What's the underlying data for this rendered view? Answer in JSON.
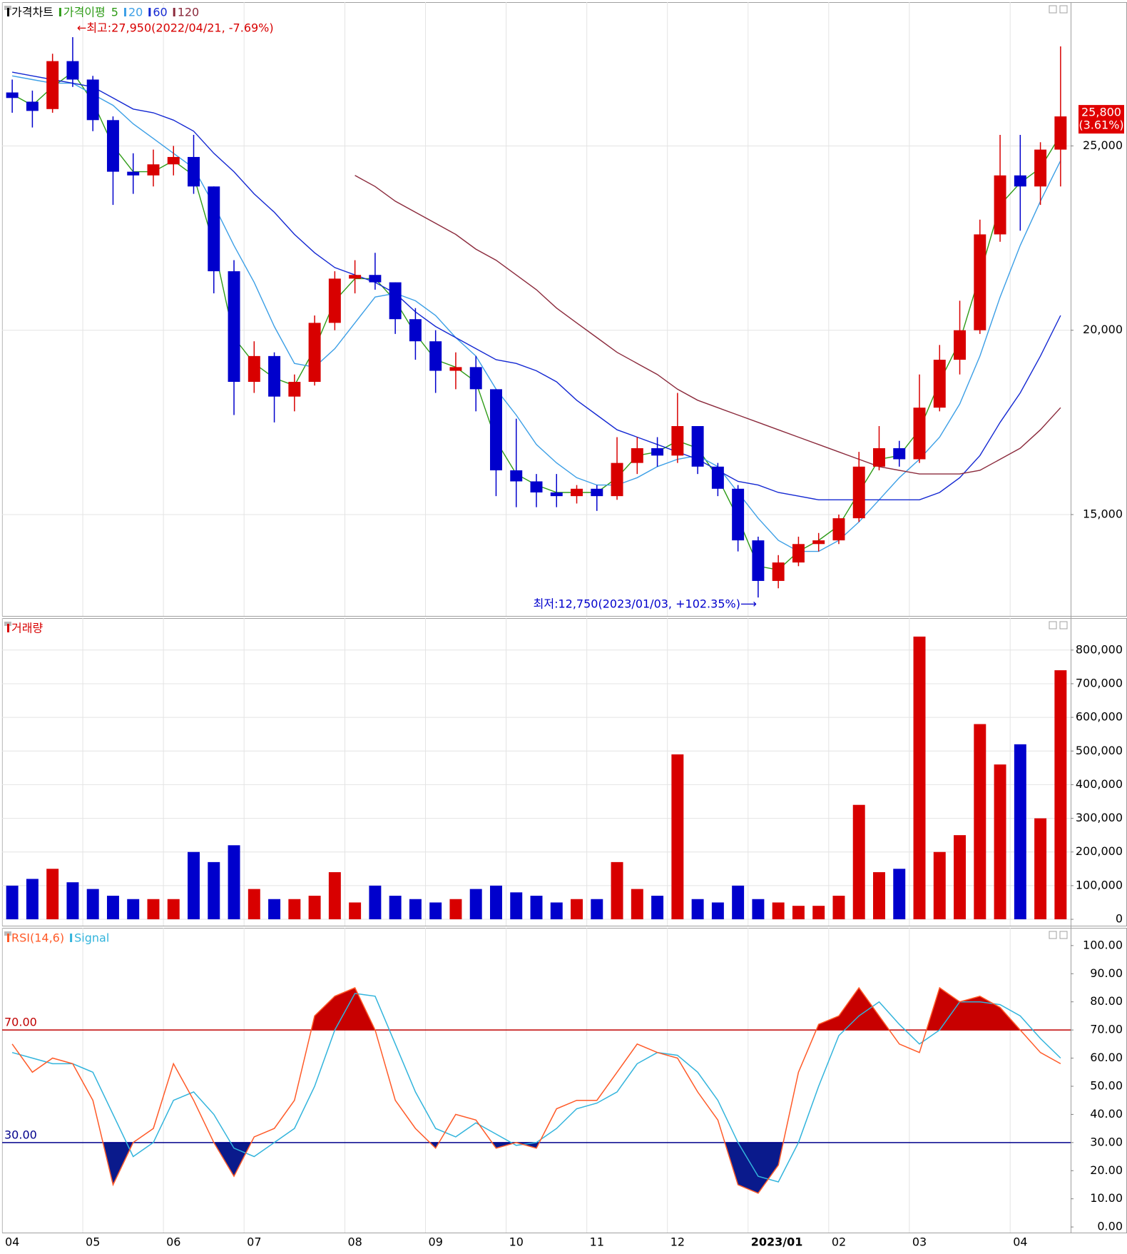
{
  "chart_data": [
    {
      "type": "candlestick",
      "title": "가격차트",
      "ma_title": "가격이평",
      "up_color": "#d80000",
      "down_color": "#0000cc",
      "title_color": "#000000",
      "open": [
        26450,
        26200,
        26000,
        27300,
        26800,
        25700,
        24300,
        24200,
        24500,
        24700,
        23900,
        21600,
        18600,
        19300,
        18200,
        18600,
        20200,
        21400,
        21500,
        21300,
        20300,
        19700,
        18900,
        19000,
        18400,
        16200,
        15900,
        15600,
        15500,
        15700,
        15500,
        16400,
        16800,
        16600,
        17400,
        16300,
        15700,
        14300,
        13200,
        13700,
        14200,
        14300,
        14900,
        16300,
        16800,
        16500,
        17900,
        19200,
        20000,
        22600,
        24200,
        23900,
        24900
      ],
      "high": [
        26800,
        26500,
        27500,
        27950,
        26900,
        25800,
        24800,
        24900,
        25000,
        25300,
        23900,
        21900,
        19700,
        19400,
        18800,
        20400,
        21600,
        21900,
        22100,
        21300,
        20600,
        20000,
        19400,
        19300,
        18400,
        17600,
        16100,
        16100,
        15800,
        15800,
        17100,
        17100,
        17100,
        18300,
        17400,
        16400,
        15800,
        14400,
        13900,
        14400,
        14500,
        15000,
        16700,
        17400,
        17000,
        18800,
        19600,
        20800,
        23000,
        25300,
        25300,
        25100,
        27700
      ],
      "low": [
        25900,
        25500,
        25900,
        26600,
        25400,
        23400,
        23700,
        23900,
        24200,
        23700,
        21000,
        17700,
        18300,
        17500,
        17800,
        18500,
        20000,
        21000,
        21100,
        19900,
        19200,
        18300,
        18400,
        17800,
        15500,
        15200,
        15200,
        15200,
        15300,
        15100,
        15400,
        16100,
        16300,
        16400,
        16100,
        15500,
        14000,
        12750,
        13000,
        13600,
        14000,
        14200,
        14800,
        16200,
        16300,
        16400,
        17800,
        18800,
        19900,
        22400,
        22700,
        23400,
        23900
      ],
      "close": [
        26300,
        25950,
        27300,
        26800,
        25700,
        24300,
        24200,
        24500,
        24700,
        23900,
        21600,
        18600,
        19300,
        18200,
        18600,
        20200,
        21400,
        21500,
        21300,
        20300,
        19700,
        18900,
        19000,
        18400,
        16200,
        15900,
        15600,
        15500,
        15700,
        15500,
        16400,
        16800,
        16600,
        17400,
        16300,
        15700,
        14300,
        13200,
        13700,
        14200,
        14300,
        14900,
        16300,
        16800,
        16500,
        17900,
        19200,
        20000,
        22600,
        24200,
        23900,
        24900,
        25800
      ],
      "series": [
        {
          "name": "5",
          "color": "#2e9b17",
          "values": [
            26400,
            26100,
            26600,
            27000,
            26200,
            25000,
            24300,
            24300,
            24600,
            24200,
            22300,
            19800,
            19100,
            18700,
            18500,
            19500,
            20800,
            21400,
            21400,
            20800,
            19900,
            19200,
            19000,
            18600,
            17000,
            16100,
            15800,
            15600,
            15600,
            15600,
            16000,
            16600,
            16700,
            17000,
            16800,
            16000,
            14900,
            13600,
            13500,
            14000,
            14300,
            14700,
            15600,
            16500,
            16600,
            17300,
            18600,
            19700,
            21500,
            23400,
            24000,
            24400,
            25300
          ]
        },
        {
          "name": "20",
          "color": "#3c9fe6",
          "values": [
            26900,
            26800,
            26700,
            26700,
            26400,
            26100,
            25600,
            25200,
            24800,
            24400,
            23400,
            22300,
            21300,
            20100,
            19100,
            19000,
            19500,
            20200,
            20900,
            21000,
            20800,
            20400,
            19800,
            19300,
            18400,
            17700,
            16900,
            16400,
            16000,
            15800,
            15800,
            16000,
            16300,
            16500,
            16600,
            16300,
            15600,
            14900,
            14300,
            14000,
            14000,
            14300,
            14800,
            15400,
            16000,
            16500,
            17100,
            18000,
            19300,
            20900,
            22300,
            23500,
            24600
          ]
        },
        {
          "name": "60",
          "color": "#1428d2",
          "values": [
            27000,
            26900,
            26800,
            26700,
            26600,
            26300,
            26000,
            25900,
            25700,
            25400,
            24800,
            24300,
            23700,
            23200,
            22600,
            22100,
            21700,
            21500,
            21300,
            21000,
            20500,
            20100,
            19800,
            19500,
            19200,
            19100,
            18900,
            18600,
            18100,
            17700,
            17300,
            17100,
            16900,
            16700,
            16500,
            16200,
            15900,
            15800,
            15600,
            15500,
            15400,
            15400,
            15400,
            15400,
            15400,
            15400,
            15600,
            16000,
            16600,
            17500,
            18300,
            19300,
            20400
          ]
        },
        {
          "name": "120",
          "color": "#8b2a3c",
          "values": [
            null,
            null,
            null,
            null,
            null,
            null,
            null,
            null,
            null,
            null,
            null,
            null,
            null,
            null,
            null,
            null,
            null,
            24200,
            23900,
            23500,
            23200,
            22900,
            22600,
            22200,
            21900,
            21500,
            21100,
            20600,
            20200,
            19800,
            19400,
            19100,
            18800,
            18400,
            18100,
            17900,
            17700,
            17500,
            17300,
            17100,
            16900,
            16700,
            16500,
            16300,
            16200,
            16100,
            16100,
            16100,
            16200,
            16500,
            16800,
            17300,
            17900
          ]
        }
      ],
      "ylim": [
        12250,
        28900
      ],
      "yticks": [
        {
          "value": 15000,
          "label": "15,000"
        },
        {
          "value": 20000,
          "label": "20,000"
        },
        {
          "value": 25000,
          "label": "25,000"
        }
      ],
      "grid": true,
      "annotations": [
        {
          "text": "←최고:27,950(2022/04/21, -7.69%)",
          "value": 27950,
          "color": "#d80000"
        },
        {
          "text": "최저:12,750(2023/01/03, +102.35%)⟶",
          "value": 12750,
          "color": "#0000cc"
        }
      ],
      "last_price": {
        "value": 25800,
        "label": "25,800",
        "change_label": "(3.61%)",
        "color": "#e00000"
      }
    },
    {
      "type": "bar",
      "title": "거래량",
      "title_color": "#d80000",
      "values": [
        100000,
        120000,
        150000,
        110000,
        90000,
        70000,
        60000,
        60000,
        60000,
        200000,
        170000,
        220000,
        90000,
        60000,
        60000,
        70000,
        140000,
        50000,
        100000,
        70000,
        60000,
        50000,
        60000,
        90000,
        100000,
        80000,
        70000,
        50000,
        60000,
        60000,
        170000,
        90000,
        70000,
        490000,
        60000,
        50000,
        100000,
        60000,
        50000,
        40000,
        40000,
        70000,
        340000,
        140000,
        150000,
        840000,
        200000,
        250000,
        580000,
        460000,
        520000,
        300000,
        740000
      ],
      "ylim": [
        -19000,
        895000
      ],
      "yticks": [
        0,
        {
          "value": 100000,
          "label": "100,000"
        },
        {
          "value": 200000,
          "label": "200,000"
        },
        {
          "value": 300000,
          "label": "300,000"
        },
        {
          "value": 400000,
          "label": "400,000"
        },
        {
          "value": 500000,
          "label": "500,000"
        },
        {
          "value": 600000,
          "label": "600,000"
        },
        {
          "value": 700000,
          "label": "700,000"
        },
        {
          "value": 800000,
          "label": "800,000"
        }
      ],
      "grid": true
    },
    {
      "type": "line",
      "categories": [
        "04",
        null,
        null,
        null,
        "05",
        null,
        null,
        null,
        "06",
        null,
        null,
        null,
        "07",
        null,
        null,
        null,
        null,
        "08",
        null,
        null,
        null,
        "09",
        null,
        null,
        null,
        "10",
        null,
        null,
        null,
        "11",
        null,
        null,
        null,
        "12",
        null,
        null,
        null,
        "2023/01",
        null,
        null,
        null,
        "02",
        null,
        null,
        null,
        "03",
        null,
        null,
        null,
        null,
        "04",
        null,
        null
      ],
      "series": [
        {
          "name": "RSI(14,6)",
          "color": "#ff5a28",
          "values": [
            65,
            55,
            60,
            58,
            45,
            15,
            30,
            35,
            58,
            45,
            30,
            18,
            32,
            35,
            45,
            75,
            82,
            85,
            70,
            45,
            35,
            28,
            40,
            38,
            28,
            30,
            28,
            42,
            45,
            45,
            55,
            65,
            62,
            60,
            48,
            38,
            15,
            12,
            22,
            55,
            72,
            75,
            85,
            75,
            65,
            62,
            85,
            80,
            82,
            78,
            70,
            62,
            58
          ]
        },
        {
          "name": "Signal",
          "color": "#32b4dc",
          "values": [
            62,
            60,
            58,
            58,
            55,
            40,
            25,
            30,
            45,
            48,
            40,
            28,
            25,
            30,
            35,
            50,
            70,
            83,
            82,
            65,
            48,
            35,
            32,
            37,
            33,
            29,
            30,
            35,
            42,
            44,
            48,
            58,
            62,
            61,
            55,
            45,
            30,
            18,
            16,
            30,
            50,
            68,
            75,
            80,
            72,
            65,
            70,
            80,
            80,
            79,
            75,
            67,
            60
          ]
        }
      ],
      "reference_lines": [
        {
          "value": 70,
          "label": "70.00",
          "color": "#c00000",
          "fill": "#c80000"
        },
        {
          "value": 30,
          "label": "30.00",
          "color": "#00008b",
          "fill": "#0a1a8c"
        }
      ],
      "ylim": [
        -2,
        106.3
      ],
      "yticks": [
        {
          "value": 0,
          "label": "0.00"
        },
        {
          "value": 10,
          "label": "10.00"
        },
        {
          "value": 20,
          "label": "20.00"
        },
        {
          "value": 30,
          "label": "30.00"
        },
        {
          "value": 40,
          "label": "40.00"
        },
        {
          "value": 50,
          "label": "50.00"
        },
        {
          "value": 60,
          "label": "60.00"
        },
        {
          "value": 70,
          "label": "70.00"
        },
        {
          "value": 80,
          "label": "80.00"
        },
        {
          "value": 90,
          "label": "90.00"
        },
        {
          "value": 100,
          "label": "100.00"
        }
      ],
      "grid": false
    }
  ]
}
